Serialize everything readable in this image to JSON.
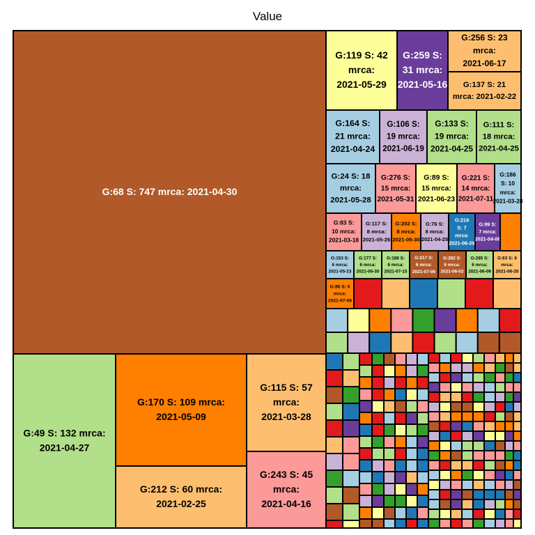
{
  "chart_data": {
    "type": "treemap",
    "title": "Value",
    "palette": [
      "#a6cee3",
      "#1f78b4",
      "#b2df8a",
      "#33a02c",
      "#fb9a99",
      "#e31a1c",
      "#fdbf6f",
      "#ff7f00",
      "#cab2d6",
      "#6a3d9a",
      "#ffff99",
      "#b15928"
    ],
    "labeled_tiles": [
      {
        "label": "G:68 S: 747 mrca: 2021-04-30",
        "value": 747,
        "color": "#b15928"
      },
      {
        "label": "G:49 S: 132 mrca: 2021-04-27",
        "value": 132,
        "color": "#b2df8a"
      },
      {
        "label": "G:170 S: 109 mrca: 2021-05-09",
        "value": 109,
        "color": "#ff7f00"
      },
      {
        "label": "G:212 S: 60 mrca: 2021-02-25",
        "value": 60,
        "color": "#fdbf6f"
      },
      {
        "label": "G:115 S: 57 mrca: 2021-03-28",
        "value": 57,
        "color": "#fdbf6f"
      },
      {
        "label": "G:243 S: 45 mrca: 2021-04-16",
        "value": 45,
        "color": "#fb9a99"
      },
      {
        "label": "G:119 S: 42 mrca: 2021-05-29",
        "value": 42,
        "color": "#ffff99"
      },
      {
        "label": "G:259 S: 31 mrca: 2021-05-16",
        "value": 31,
        "color": "#6a3d9a"
      },
      {
        "label": "G:256 S: 23 mrca: 2021-06-17",
        "value": 23,
        "color": "#fdbf6f"
      },
      {
        "label": "G:137 S: 21 mrca: 2021-02-22",
        "value": 21,
        "color": "#fdbf6f"
      },
      {
        "label": "G:164 S: 21 mrca: 2021-04-24",
        "value": 21,
        "color": "#a6cee3"
      },
      {
        "label": "G:106 S: 19 mrca: 2021-06-19",
        "value": 19,
        "color": "#cab2d6"
      },
      {
        "label": "G:133 S: 19 mrca: 2021-04-25",
        "value": 19,
        "color": "#b2df8a"
      },
      {
        "label": "G:111 S: 18 mrca: 2021-04-25",
        "value": 18,
        "color": "#b2df8a"
      },
      {
        "label": "G:24 S: 18 mrca: 2021-05-28",
        "value": 18,
        "color": "#a6cee3"
      },
      {
        "label": "G:276 S: 15 mrca: 2021-05-31",
        "value": 15,
        "color": "#fb9a99"
      },
      {
        "label": "G:89 S: 15 mrca: 2021-06-23",
        "value": 15,
        "color": "#ffff99"
      },
      {
        "label": "G:221 S: 14 mrca: 2021-07-11",
        "value": 14,
        "color": "#fb9a99"
      },
      {
        "label": "G:186 S: 10 mrca: 2021-03-28",
        "value": 10,
        "color": "#a6cee3"
      },
      {
        "label": "G:83 S: 10 mrca: 2021-03-18",
        "value": 10,
        "color": "#fb9a99"
      },
      {
        "label": "G:117 S: 8 mrca: 2021-05-26",
        "value": 8,
        "color": "#cab2d6"
      },
      {
        "label": "G:202 S: 8 mrca: 2021-05-30",
        "value": 8,
        "color": "#ff7f00"
      },
      {
        "label": "G:76 S: 8 mrca: 2021-04-25",
        "value": 8,
        "color": "#cab2d6"
      },
      {
        "label": "G:219 S: 7 mrca: 2021-06-29",
        "value": 7,
        "color": "#1f78b4"
      },
      {
        "label": "G:99 S: 7 mrca: 2021-04-08",
        "value": 7,
        "color": "#6a3d9a"
      },
      {
        "label": "G:153 S: 6 mrca: 2021-05-23",
        "value": 6,
        "color": "#a6cee3"
      },
      {
        "label": "G:177 S: 6 mrca: 2021-06-30",
        "value": 6,
        "color": "#b2df8a"
      },
      {
        "label": "G:188 S: 6 mrca: 2021-07-15",
        "value": 6,
        "color": "#b2df8a"
      },
      {
        "label": "G:217 S: 6 mrca: 2021-07-06",
        "value": 6,
        "color": "#b15928"
      },
      {
        "label": "G:282 S: 6 mrca: 2021-06-02",
        "value": 6,
        "color": "#b15928"
      },
      {
        "label": "G:285 S: 6 mrca: 2021-06-09",
        "value": 6,
        "color": "#b2df8a"
      },
      {
        "label": "G:63 S: 6 mrca: 2021-06-20",
        "value": 6,
        "color": "#fdbf6f"
      },
      {
        "label": "G:86 S: 6 mrca: 2021-07-06",
        "value": 6,
        "color": "#ff7f00"
      }
    ],
    "unlabeled_tile_count": 300,
    "legend": "none",
    "axes": "none"
  }
}
